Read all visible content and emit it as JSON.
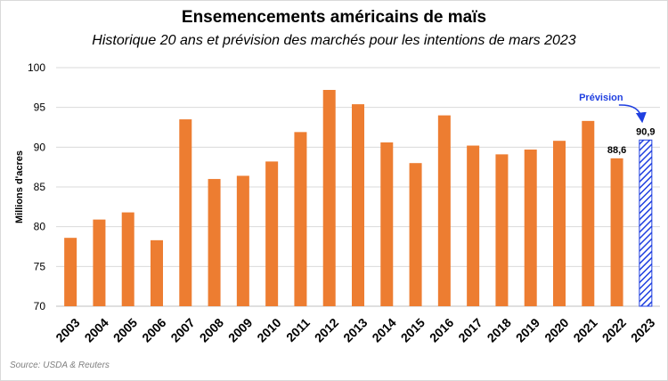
{
  "chart_data": {
    "type": "bar",
    "title": "Ensemencements américains de maïs",
    "subtitle": "Historique 20 ans et prévision des marchés pour les intentions de mars 2023",
    "xlabel": "",
    "ylabel": "Millions d'acres",
    "ylim": [
      70,
      100
    ],
    "yticks": [
      "70",
      "75",
      "80",
      "85",
      "90",
      "95",
      "100"
    ],
    "grid": true,
    "categories": [
      "2003",
      "2004",
      "2005",
      "2006",
      "2007",
      "2008",
      "2009",
      "2010",
      "2011",
      "2012",
      "2013",
      "2014",
      "2015",
      "2016",
      "2017",
      "2018",
      "2019",
      "2020",
      "2021",
      "2022",
      "2023"
    ],
    "values": [
      78.6,
      80.9,
      81.8,
      78.3,
      93.5,
      86.0,
      86.4,
      88.2,
      91.9,
      97.2,
      95.4,
      90.6,
      88.0,
      94.0,
      90.2,
      89.1,
      89.7,
      90.8,
      93.3,
      88.6,
      90.9
    ],
    "data_labels": [
      {
        "category": "2022",
        "text": "88,6"
      },
      {
        "category": "2023",
        "text": "90,9"
      }
    ],
    "forecast_category": "2023",
    "annotation": "Prévision",
    "colors": {
      "bar": "#ed7d31",
      "forecast": "#1f3fe0",
      "grid": "#d9d9d9"
    }
  },
  "source": "Source: USDA & Reuters"
}
